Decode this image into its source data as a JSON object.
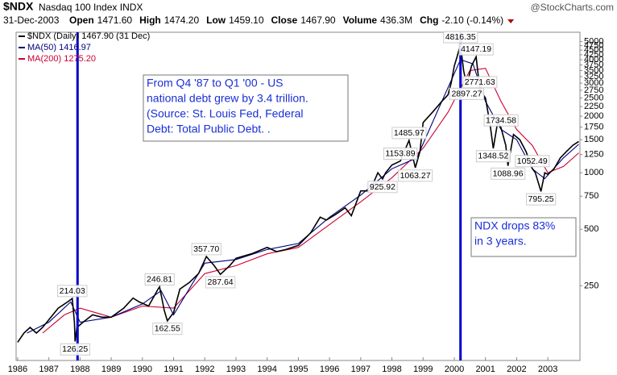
{
  "chart_data": {
    "type": "line",
    "title": "$NDX",
    "subtitle": "Nasdaq 100 Index INDX",
    "watermark": "@StockCharts.com",
    "date": "31-Dec-2003",
    "quote": [
      {
        "label": "Open",
        "value": "1471.60"
      },
      {
        "label": "High",
        "value": "1474.20"
      },
      {
        "label": "Low",
        "value": "1459.10"
      },
      {
        "label": "Close",
        "value": "1467.90"
      },
      {
        "label": "Volume",
        "value": "436.3M"
      },
      {
        "label": "Chg",
        "value": "-2.10 (-0.14%)"
      }
    ],
    "log_scale": true,
    "grid": false,
    "xlim": [
      1985.95,
      2004.03
    ],
    "xticks": [
      1986,
      1987,
      1988,
      1989,
      1990,
      1991,
      1992,
      1993,
      1994,
      1995,
      1996,
      1997,
      1998,
      1999,
      2000,
      2001,
      2002,
      2003
    ],
    "ylim": [
      100,
      5600
    ],
    "yticks": [
      250,
      500,
      750,
      1000,
      1250,
      1500,
      1750,
      2000,
      2250,
      2500,
      2750,
      3000,
      3250,
      3500,
      3750,
      4000,
      4250,
      4500,
      4750,
      5000
    ],
    "series": [
      {
        "name": "$NDX (Daily) 1467.90 (31 Dec)",
        "color": "#000000",
        "x": [
          1986.0,
          1986.2,
          1986.4,
          1986.6,
          1986.8,
          1987.0,
          1987.3,
          1987.6,
          1987.75,
          1987.82,
          1987.84,
          1987.9,
          1988.1,
          1988.4,
          1988.7,
          1989.0,
          1989.4,
          1989.7,
          1989.9,
          1990.2,
          1990.5,
          1990.55,
          1990.7,
          1990.8,
          1991.0,
          1991.2,
          1991.5,
          1991.8,
          1992.05,
          1992.3,
          1992.5,
          1992.8,
          1993.0,
          1993.5,
          1994.0,
          1994.3,
          1994.6,
          1995.0,
          1995.4,
          1995.7,
          1995.9,
          1996.2,
          1996.5,
          1996.7,
          1997.0,
          1997.3,
          1997.55,
          1997.7,
          1997.8,
          1998.0,
          1998.27,
          1998.55,
          1998.75,
          1998.9,
          1999.0,
          1999.3,
          1999.6,
          1999.8,
          1999.9,
          2000.0,
          2000.1,
          2000.2,
          2000.3,
          2000.4,
          2000.55,
          2000.7,
          2000.82,
          2001.0,
          2001.15,
          2001.25,
          2001.4,
          2001.5,
          2001.65,
          2001.72,
          2001.9,
          2002.1,
          2002.3,
          2002.5,
          2002.6,
          2002.78,
          2002.9,
          2003.0,
          2003.2,
          2003.4,
          2003.6,
          2003.8,
          2003.99
        ],
        "values": [
          125,
          140,
          150,
          140,
          150,
          165,
          190,
          205,
          214.03,
          160,
          126.25,
          150,
          160,
          175,
          170,
          170,
          190,
          215,
          205,
          195,
          240,
          246.81,
          185,
          162.55,
          180,
          240,
          260,
          290,
          357.7,
          320,
          287.64,
          320,
          350,
          370,
          400,
          380,
          390,
          410,
          480,
          580,
          560,
          600,
          650,
          590,
          800,
          800,
          1000,
          925.92,
          1000,
          1100,
          1153.89,
          1485.97,
          1063.27,
          1300,
          1850,
          2100,
          2400,
          2600,
          3000,
          3700,
          4200,
          4816.35,
          3500,
          2897.27,
          3700,
          4147.19,
          2771.63,
          2500,
          1800,
          1348.52,
          1900,
          1734.58,
          1400,
          1088.96,
          1600,
          1500,
          1300,
          1052.49,
          1000,
          795.25,
          1000,
          980,
          1050,
          1200,
          1300,
          1400,
          1467.9
        ]
      },
      {
        "name": "MA(50) 1416.97",
        "color": "#000080",
        "x": [
          1986.3,
          1987.0,
          1987.7,
          1988.0,
          1989.0,
          1990.0,
          1990.6,
          1991.0,
          1992.0,
          1993.0,
          1994.0,
          1995.0,
          1996.0,
          1997.0,
          1998.0,
          1998.8,
          1999.5,
          2000.2,
          2000.6,
          2001.0,
          2001.5,
          2002.0,
          2002.5,
          2002.9,
          2003.5,
          2003.99
        ],
        "values": [
          140,
          160,
          205,
          160,
          170,
          200,
          235,
          175,
          330,
          345,
          390,
          420,
          580,
          760,
          1050,
          1200,
          2200,
          4000,
          3800,
          2400,
          1700,
          1500,
          1050,
          930,
          1200,
          1416.97
        ]
      },
      {
        "name": "MA(200) 1275.20",
        "color": "#cc0033",
        "x": [
          1986.8,
          1987.5,
          1988.0,
          1989.0,
          1990.0,
          1991.0,
          1992.0,
          1993.0,
          1994.0,
          1995.0,
          1996.0,
          1997.0,
          1998.0,
          1999.0,
          1999.8,
          2000.5,
          2001.0,
          2001.5,
          2002.0,
          2002.5,
          2003.0,
          2003.5,
          2003.99
        ],
        "values": [
          140,
          175,
          190,
          170,
          195,
          190,
          290,
          320,
          370,
          400,
          530,
          700,
          940,
          1350,
          2100,
          3500,
          3600,
          2400,
          1700,
          1400,
          1000,
          1080,
          1275.2
        ]
      }
    ],
    "point_labels": [
      {
        "x": 1987.75,
        "value": 214.03,
        "label": "214.03",
        "place": "above"
      },
      {
        "x": 1987.84,
        "value": 126.25,
        "label": "126.25",
        "place": "below"
      },
      {
        "x": 1990.55,
        "value": 246.81,
        "label": "246.81",
        "place": "above"
      },
      {
        "x": 1990.8,
        "value": 162.55,
        "label": "162.55",
        "place": "below"
      },
      {
        "x": 1992.05,
        "value": 357.7,
        "label": "357.70",
        "place": "above"
      },
      {
        "x": 1992.5,
        "value": 287.64,
        "label": "287.64",
        "place": "below"
      },
      {
        "x": 1997.7,
        "value": 925.92,
        "label": "925.92",
        "place": "below"
      },
      {
        "x": 1998.27,
        "value": 1153.89,
        "label": "1153.89",
        "place": "above"
      },
      {
        "x": 1998.55,
        "value": 1485.97,
        "label": "1485.97",
        "place": "above"
      },
      {
        "x": 1998.75,
        "value": 1063.27,
        "label": "1063.27",
        "place": "below"
      },
      {
        "x": 2000.2,
        "value": 4816.35,
        "label": "4816.35",
        "place": "above"
      },
      {
        "x": 2000.4,
        "value": 2897.27,
        "label": "2897.27",
        "place": "below"
      },
      {
        "x": 2000.7,
        "value": 4147.19,
        "label": "4147.19",
        "place": "above"
      },
      {
        "x": 2000.82,
        "value": 2771.63,
        "label": "2771.63",
        "place": "above"
      },
      {
        "x": 2001.25,
        "value": 1348.52,
        "label": "1348.52",
        "place": "below"
      },
      {
        "x": 2001.5,
        "value": 1734.58,
        "label": "1734.58",
        "place": "above"
      },
      {
        "x": 2001.72,
        "value": 1088.96,
        "label": "1088.96",
        "place": "below"
      },
      {
        "x": 2002.5,
        "value": 1052.49,
        "label": "1052.49",
        "place": "above"
      },
      {
        "x": 2002.78,
        "value": 795.25,
        "label": "795.25",
        "place": "below"
      }
    ],
    "vlines": [
      {
        "x": 1987.92,
        "color": "#0000cc"
      },
      {
        "x": 2000.2,
        "color": "#0000cc"
      }
    ],
    "notes": [
      {
        "lines": [
          "From Q4 '87 to Q1 '00 - US",
          "national debt grew by 3.4 trillion.",
          "(Source: St. Louis Fed, Federal",
          "Debt: Total Public Debt.  ."
        ]
      },
      {
        "lines": [
          "NDX drops 83%",
          "in 3 years."
        ]
      }
    ]
  }
}
